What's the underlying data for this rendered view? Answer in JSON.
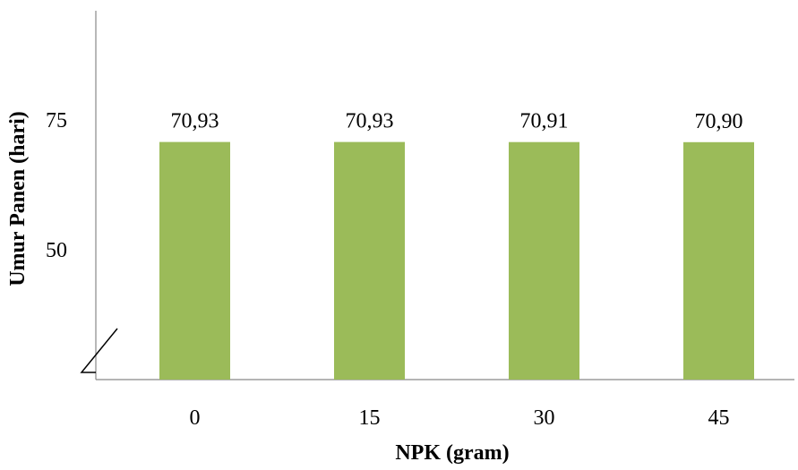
{
  "chart_data": {
    "type": "bar",
    "categories": [
      "0",
      "15",
      "30",
      "45"
    ],
    "values": [
      70.93,
      70.93,
      70.91,
      70.9
    ],
    "value_labels": [
      "70,93",
      "70,93",
      "70,91",
      "70,90"
    ],
    "xlabel": "NPK (gram)",
    "ylabel": "Umur Panen (hari)",
    "yticks": [
      "50",
      "75"
    ],
    "y_axis_break": true,
    "grid": false,
    "bar_color": "#9BBB59"
  }
}
